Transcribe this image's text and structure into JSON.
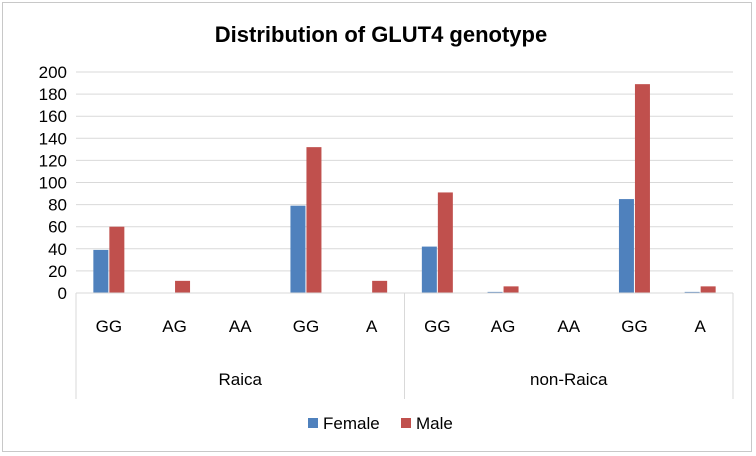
{
  "chart_data": {
    "type": "bar",
    "title": "Distribution of GLUT4 genotype",
    "xlabel": "",
    "ylabel": "",
    "ylim": [
      0,
      200
    ],
    "yticks": [
      "0",
      "20",
      "40",
      "60",
      "80",
      "100",
      "120",
      "140",
      "160",
      "180",
      "200"
    ],
    "grid": true,
    "legend_position": "bottom",
    "groups": [
      {
        "label": "Raica",
        "categories": [
          "GG",
          "AG",
          "AA",
          "GG",
          "A"
        ]
      },
      {
        "label": "non-Raica",
        "categories": [
          "GG",
          "AG",
          "AA",
          "GG",
          "A"
        ]
      }
    ],
    "categories": [
      "GG",
      "AG",
      "AA",
      "GG",
      "A",
      "GG",
      "AG",
      "AA",
      "GG",
      "A"
    ],
    "series": [
      {
        "name": "Female",
        "color": "#4f81bd",
        "values": [
          39,
          0,
          0,
          79,
          0,
          42,
          1,
          0,
          85,
          1
        ]
      },
      {
        "name": "Male",
        "color": "#c0504d",
        "values": [
          60,
          11,
          0,
          132,
          11,
          91,
          6,
          0,
          189,
          6
        ]
      }
    ]
  }
}
